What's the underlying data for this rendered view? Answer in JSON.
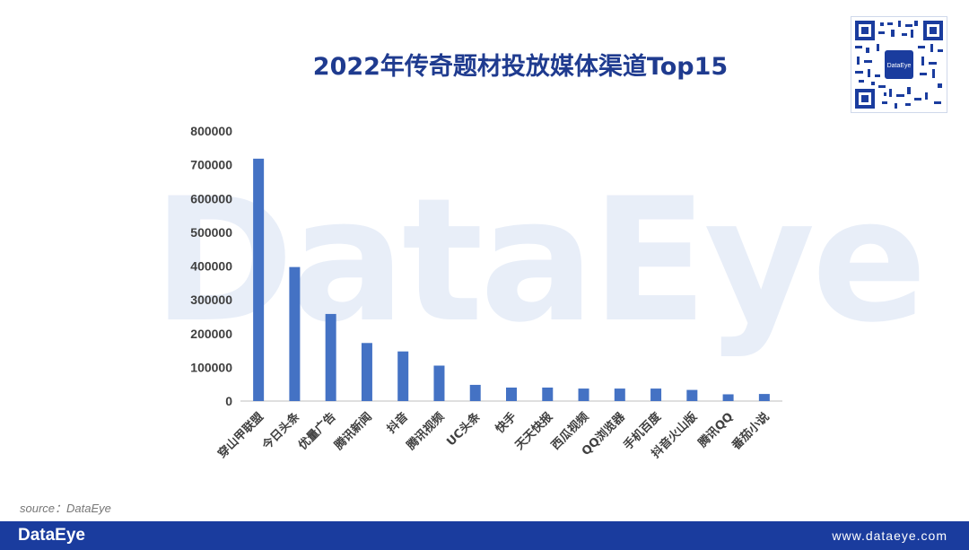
{
  "header": {
    "title": "2022年传奇题材投放媒体渠道Top15"
  },
  "watermark": {
    "text": "DataEye"
  },
  "qr": {
    "center_label": "DataEye"
  },
  "source": {
    "text": "source：DataEye"
  },
  "footer": {
    "brand": "DataEye",
    "site": "www.dataeye.com",
    "bg_color": "#1a3c9e"
  },
  "chart_data": {
    "type": "bar",
    "title": "2022年传奇题材投放媒体渠道Top15",
    "categories": [
      "穿山甲联盟",
      "今日头条",
      "优量广告",
      "腾讯新闻",
      "抖音",
      "腾讯视频",
      "UC头条",
      "快手",
      "天天快报",
      "西瓜视频",
      "QQ浏览器",
      "手机百度",
      "抖音火山版",
      "腾讯QQ",
      "番茄小说"
    ],
    "values": [
      718000,
      397000,
      258000,
      172000,
      147000,
      105000,
      48000,
      40000,
      40000,
      37000,
      37000,
      37000,
      33000,
      20000,
      21000
    ],
    "ylim": [
      0,
      800000
    ],
    "yticks": [
      "0",
      "100000",
      "200000",
      "300000",
      "400000",
      "500000",
      "600000",
      "700000",
      "800000"
    ],
    "bar_color": "#4472c4",
    "grid": false,
    "legend": "none"
  }
}
